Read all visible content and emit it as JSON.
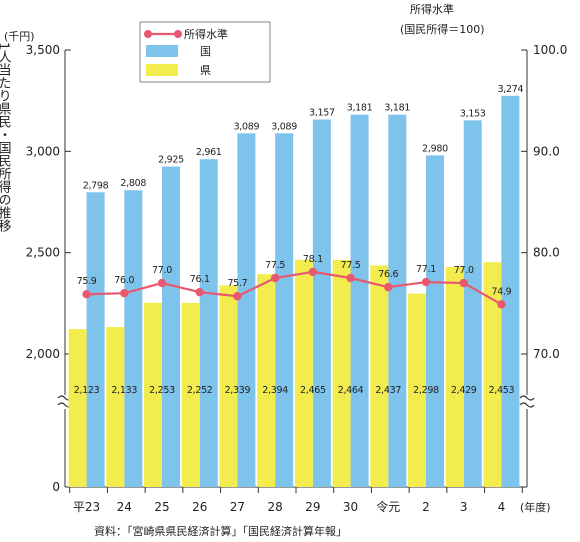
{
  "chart_data": {
    "type": "bar",
    "left_unit": "(千円)",
    "right_title": "所得水準",
    "right_subtitle": "(国民所得＝100)",
    "ylabel": "1人当たり県民・国民所得の推移",
    "xlabel": "(年度)",
    "categories": [
      "平23",
      "24",
      "25",
      "26",
      "27",
      "28",
      "29",
      "30",
      "令元",
      "2",
      "3",
      "4"
    ],
    "left_ticks": [
      "0",
      "2,000",
      "2,500",
      "3,000",
      "3,500"
    ],
    "right_ticks": [
      "70.0",
      "80.0",
      "90.0",
      "100.0"
    ],
    "left_axis_range": [
      2000,
      3500
    ],
    "right_axis_range": [
      70,
      100
    ],
    "axis_break": true,
    "series": [
      {
        "name": "国",
        "kind": "bar",
        "color": "#7ec3ec",
        "values": [
          2798,
          2808,
          2925,
          2961,
          3089,
          3089,
          3157,
          3181,
          3181,
          2980,
          3153,
          3274
        ],
        "labels": [
          "2,798",
          "2,808",
          "2,925",
          "2,961",
          "3,089",
          "3,089",
          "3,157",
          "3,181",
          "3,181",
          "2,980",
          "3,153",
          "3,274"
        ]
      },
      {
        "name": "県",
        "kind": "bar",
        "color": "#f3ec4f",
        "values": [
          2123,
          2133,
          2253,
          2252,
          2339,
          2394,
          2465,
          2464,
          2437,
          2298,
          2429,
          2453
        ],
        "labels": [
          "2,123",
          "2,133",
          "2,253",
          "2,252",
          "2,339",
          "2,394",
          "2,465",
          "2,464",
          "2,437",
          "2,298",
          "2,429",
          "2,453"
        ]
      },
      {
        "name": "所得水準",
        "kind": "line",
        "color": "#e8586e",
        "axis": "right",
        "values": [
          75.9,
          76.0,
          77.0,
          76.1,
          75.7,
          77.5,
          78.1,
          77.5,
          76.6,
          77.1,
          77.0,
          74.9
        ],
        "labels": [
          "75.9",
          "76.0",
          "77.0",
          "76.1",
          "75.7",
          "77.5",
          "78.1",
          "77.5",
          "76.6",
          "77.1",
          "77.0",
          "74.9"
        ]
      }
    ],
    "legend_position": "top-left",
    "grid": false
  },
  "source_note": "資料：「宮崎県県民経済計算」「国民経済計算年報」"
}
